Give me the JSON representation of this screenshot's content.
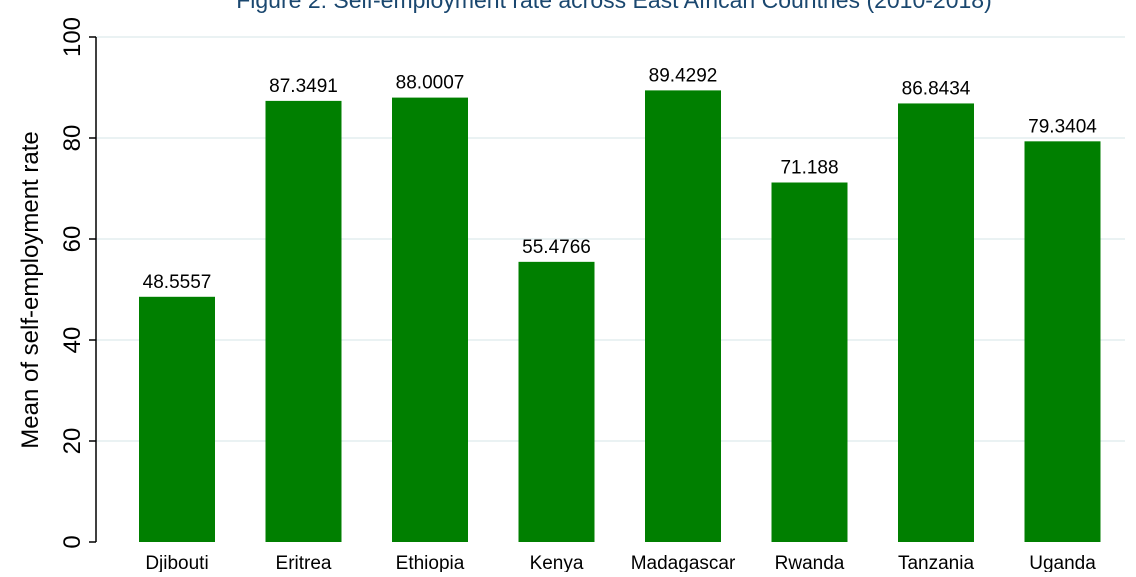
{
  "chart_data": {
    "type": "bar",
    "title": "Figure 2: Self-employment rate across East African Countries (2010-2018)",
    "ylabel": "Mean of self-employment rate",
    "xlabel": "",
    "ylim": [
      0,
      100
    ],
    "yticks": [
      0,
      20,
      40,
      60,
      80,
      100
    ],
    "grid": true,
    "categories": [
      "Djibouti",
      "Eritrea",
      "Ethiopia",
      "Kenya",
      "Madagascar",
      "Rwanda",
      "Tanzania",
      "Uganda"
    ],
    "values": [
      48.5557,
      87.3491,
      88.0007,
      55.4766,
      89.4292,
      71.188,
      86.8434,
      79.3404
    ],
    "value_labels": [
      "48.5557",
      "87.3491",
      "88.0007",
      "55.4766",
      "89.4292",
      "71.188",
      "86.8434",
      "79.3404"
    ],
    "bar_color": "#007f00",
    "gridline_color": "#eaf2f3",
    "axis_color": "#000000"
  }
}
